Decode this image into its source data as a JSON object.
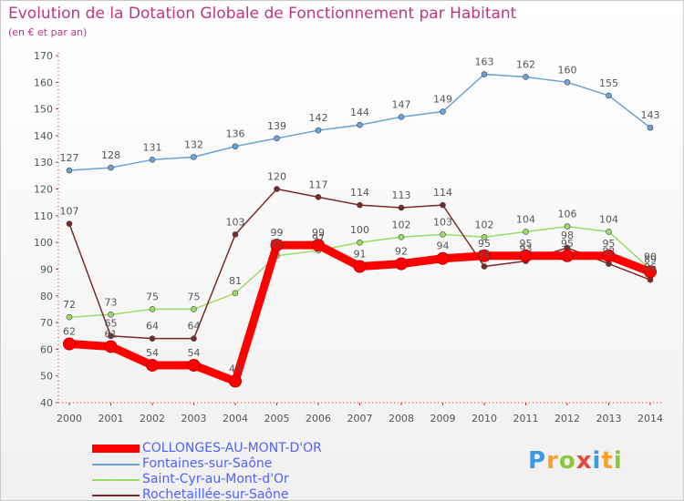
{
  "title": "Evolution de la Dotation Globale de Fonctionnement par Habitant",
  "subtitle": "(en € et par an)",
  "brand": "Proxiti",
  "chart_data": {
    "type": "line",
    "x": [
      "2000",
      "2001",
      "2002",
      "2003",
      "2004",
      "2005",
      "2006",
      "2007",
      "2008",
      "2009",
      "2010",
      "2011",
      "2012",
      "2013",
      "2014"
    ],
    "ylim": [
      40,
      170
    ],
    "yticks": [
      40,
      50,
      60,
      70,
      80,
      90,
      100,
      110,
      120,
      130,
      140,
      150,
      160,
      170
    ],
    "grid": false,
    "legend_position": "bottom-left",
    "series": [
      {
        "name": "COLLONGES-AU-MONT-D'OR",
        "color": "#ff0000",
        "values": [
          62,
          61,
          54,
          54,
          48,
          99,
          99,
          91,
          92,
          94,
          95,
          95,
          95,
          95,
          89
        ],
        "labels": [
          "62",
          "61",
          "54",
          "54",
          "48",
          "99",
          "99",
          "91",
          "92",
          "94",
          "95",
          "95",
          "95",
          "95",
          "89"
        ]
      },
      {
        "name": "Fontaines-sur-Saône",
        "color": "#6aa3d8",
        "values": [
          127,
          128,
          131,
          132,
          136,
          139,
          142,
          144,
          147,
          149,
          163,
          162,
          160,
          155,
          143
        ],
        "labels": [
          "127",
          "128",
          "131",
          "132",
          "136",
          "139",
          "142",
          "144",
          "147",
          "149",
          "163",
          "162",
          "160",
          "155",
          "143"
        ]
      },
      {
        "name": "Saint-Cyr-au-Mont-d'Or",
        "color": "#99dd66",
        "values": [
          72,
          73,
          75,
          75,
          81,
          95,
          97,
          100,
          102,
          103,
          102,
          104,
          106,
          104,
          90
        ],
        "labels": [
          "72",
          "73",
          "75",
          "75",
          "81",
          "95",
          "97",
          "100",
          "102",
          "103",
          "102",
          "104",
          "106",
          "104",
          "90"
        ]
      },
      {
        "name": "Rochetaillée-sur-Saône",
        "color": "#7a2a2a",
        "values": [
          107,
          65,
          64,
          64,
          103,
          120,
          117,
          114,
          113,
          114,
          91,
          93,
          98,
          92,
          86
        ],
        "labels": [
          "107",
          "65",
          "64",
          "64",
          "103",
          "120",
          "117",
          "114",
          "113",
          "114",
          "91",
          "93",
          "98",
          "92",
          "86"
        ]
      }
    ]
  }
}
